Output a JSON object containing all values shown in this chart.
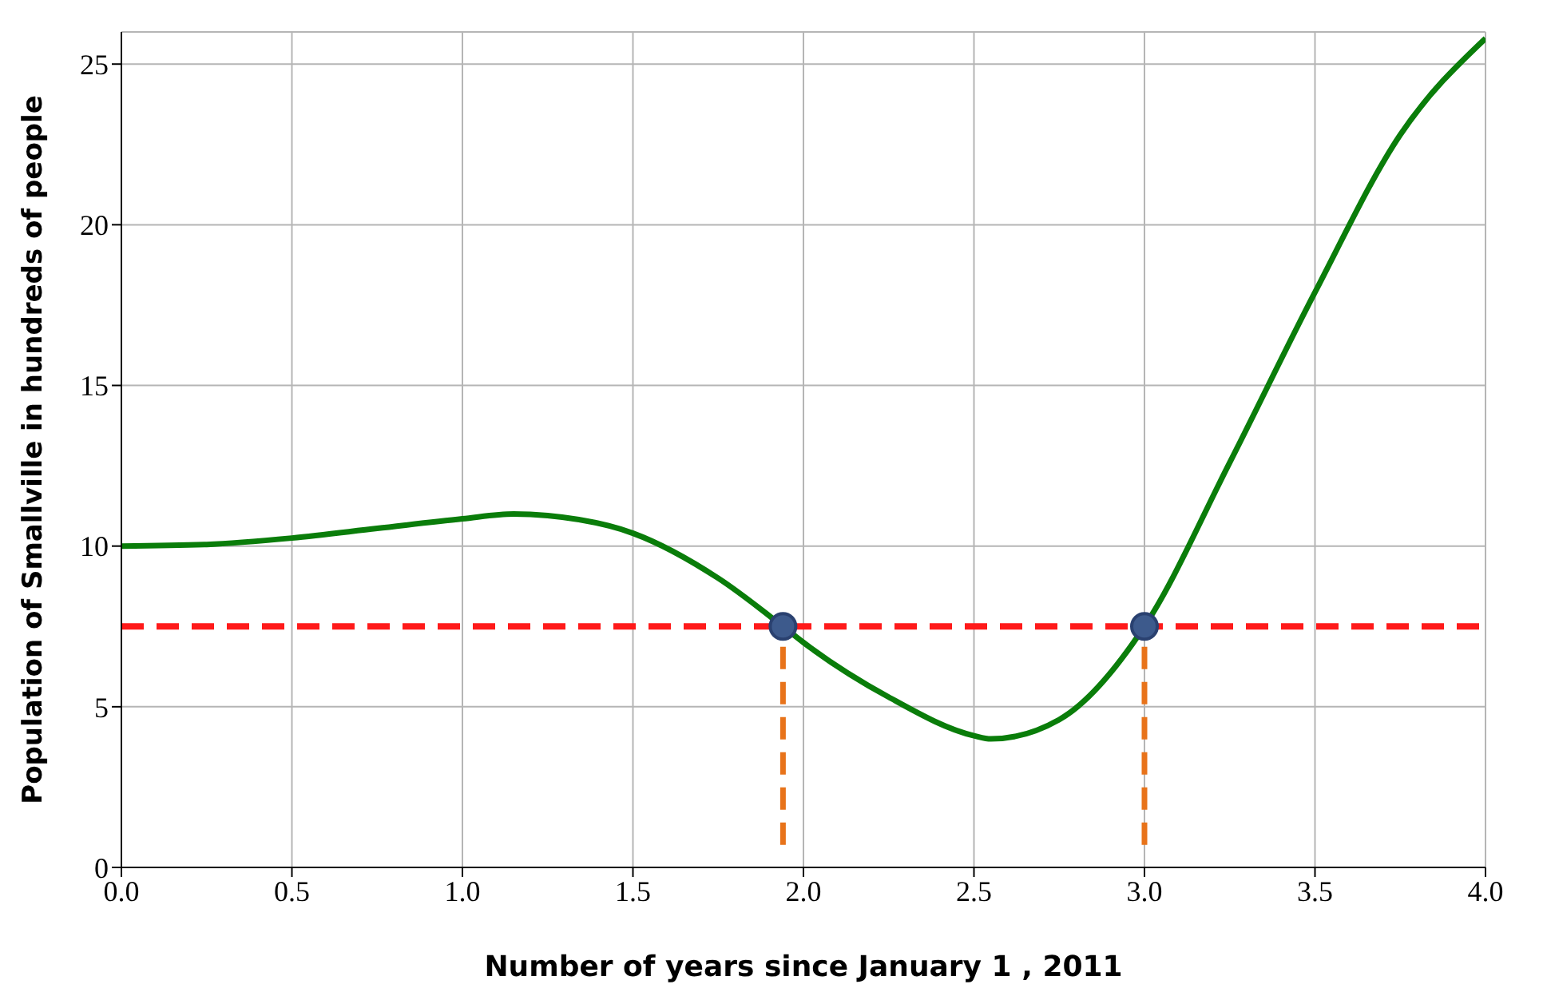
{
  "chart_data": {
    "type": "line",
    "xlabel": "Number of years since January 1 , 2011",
    "ylabel": "Population of Smallville in hundreds of people",
    "xlim": [
      0,
      4
    ],
    "xticks": [
      {
        "value": 0,
        "label": "0.0"
      },
      {
        "value": 0.5,
        "label": "0.5"
      },
      {
        "value": 1,
        "label": "1.0"
      },
      {
        "value": 1.5,
        "label": "1.5"
      },
      {
        "value": 2,
        "label": "2.0"
      },
      {
        "value": 2.5,
        "label": "2.5"
      },
      {
        "value": 3,
        "label": "3.0"
      },
      {
        "value": 3.5,
        "label": "3.5"
      },
      {
        "value": 4,
        "label": "4.0"
      }
    ],
    "ylim": [
      0,
      26
    ],
    "yticks": [
      0,
      5,
      10,
      15,
      20,
      25
    ],
    "grid": true,
    "series": [
      {
        "color": "#0a7d0a",
        "line_style": "solid",
        "x": [
          0,
          0.25,
          0.5,
          0.75,
          1.0,
          1.15,
          1.25,
          1.5,
          1.75,
          1.94,
          2.0,
          2.25,
          2.5,
          2.55,
          2.75,
          3.0,
          3.25,
          3.5,
          3.75,
          4.0
        ],
        "values": [
          10,
          10.05,
          10.25,
          10.55,
          10.85,
          11,
          10.95,
          10.4,
          9.0,
          7.5,
          7.0,
          5.3,
          4.1,
          4.0,
          4.6,
          7.5,
          12.6,
          17.9,
          22.8,
          25.8
        ]
      },
      {
        "type": "line",
        "color": "#e8731a",
        "line_style": "dashed",
        "x": [
          1.94,
          1.94
        ],
        "values": [
          0.7,
          7.5
        ]
      },
      {
        "type": "line",
        "color": "#e8731a",
        "line_style": "dashed",
        "x": [
          3.0,
          3.0
        ],
        "values": [
          0.7,
          7.5
        ]
      },
      {
        "type": "scatter",
        "color": "#3d5a8c",
        "marker": "circle",
        "x": [
          1.94,
          3.0
        ],
        "values": [
          7.5,
          7.5
        ]
      }
    ],
    "ref_lines": [
      {
        "axis": "y",
        "value": 7.5,
        "color": "#ff1a1a",
        "line_style": "dashed"
      }
    ]
  }
}
